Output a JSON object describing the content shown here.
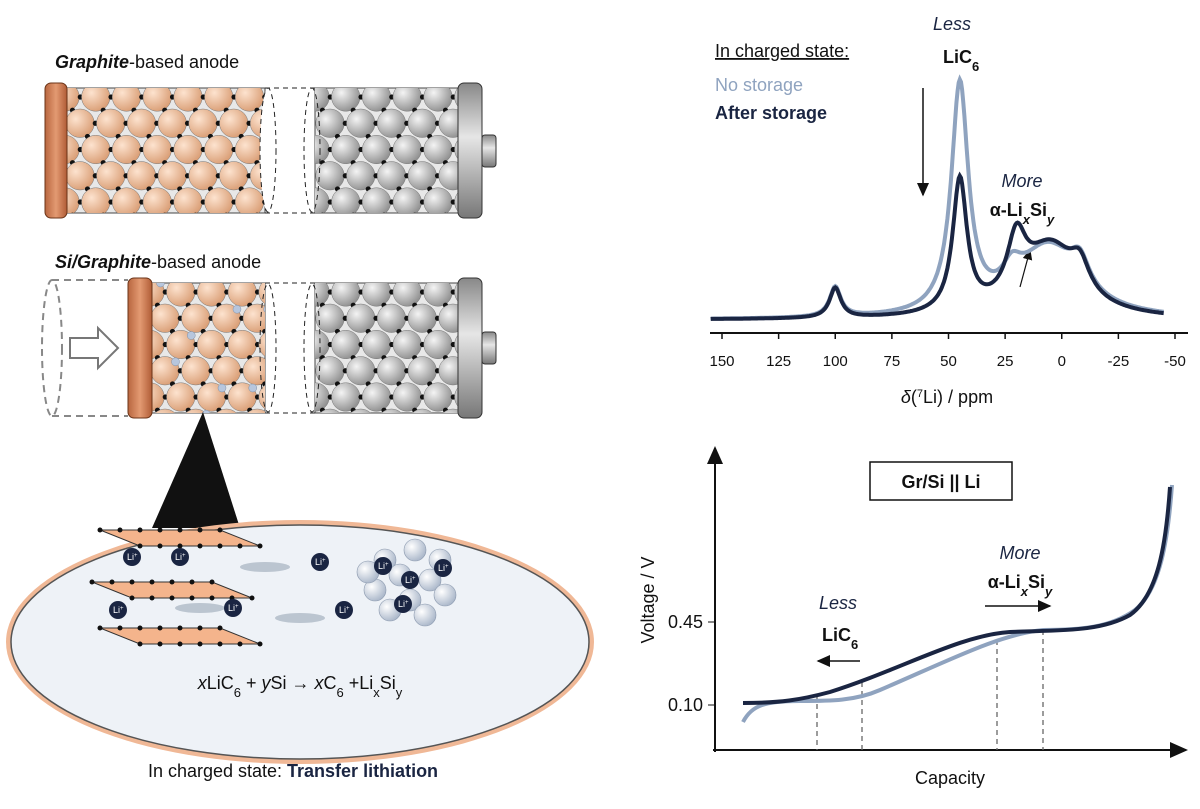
{
  "illustration": {
    "anode1": {
      "bold": "Graphite",
      "rest": "-based anode"
    },
    "anode2": {
      "bold": "Si/Graphite",
      "rest": "-based anode"
    },
    "ion": {
      "symbol": "Li",
      "charge": "+"
    },
    "equation": [
      "x",
      "LiC",
      "6",
      " + ",
      "y",
      "Si → ",
      "x",
      "C",
      "6",
      " +Li",
      "x",
      "Si",
      "y"
    ],
    "caption": {
      "text": "In charged state: ",
      "bold": "Transfer lithiation"
    }
  },
  "nmr": {
    "legend_title": "In charged state:",
    "series": [
      "No storage",
      "After storage"
    ],
    "less": "Less",
    "lic": "LiC",
    "lic_sub": "6",
    "more": "More",
    "alpha": "α-Li",
    "x": "x",
    "si": "Si",
    "y": "y",
    "ticks": [
      "150",
      "125",
      "100",
      "75",
      "50",
      "25",
      "0",
      "-25",
      "-50"
    ],
    "axis": [
      "δ",
      "(",
      "7",
      "Li) / ppm"
    ]
  },
  "voltage": {
    "box": "Gr/Si || Li",
    "ylabel": "Voltage / V",
    "xlabel": "Capacity",
    "ticks": [
      "0.45",
      "0.10"
    ],
    "more": "More",
    "alpha": "α-Li",
    "x": "x",
    "si": "Si",
    "y": "y",
    "less": "Less",
    "lic": "LiC",
    "lic_sub": "6"
  }
}
